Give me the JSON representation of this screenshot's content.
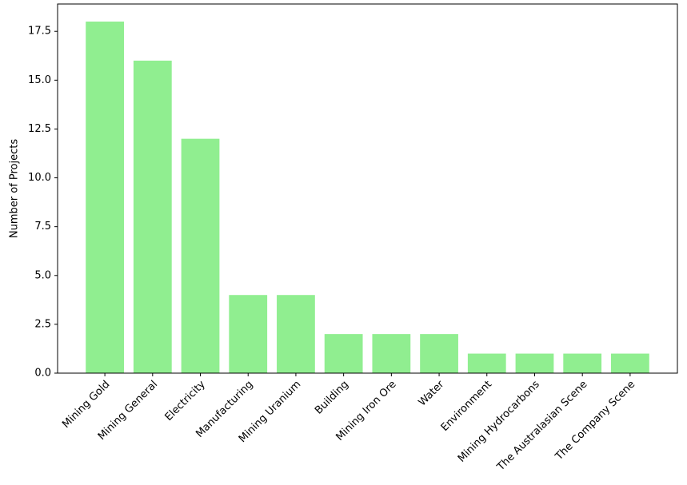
{
  "chart_data": {
    "type": "bar",
    "ylabel": "Number of Projects",
    "categories": [
      "Mining Gold",
      "Mining General",
      "Electricity",
      "Manufacturing",
      "Mining Uranium",
      "Building",
      "Mining Iron Ore",
      "Water",
      "Environment",
      "Mining Hydrocarbons",
      "The Australasian Scene",
      "The Company Scene"
    ],
    "values": [
      18,
      16,
      12,
      4,
      4,
      2,
      2,
      2,
      1,
      1,
      1,
      1
    ],
    "color": "#90ee90",
    "ylim": [
      0,
      18.9
    ],
    "yticks": [
      {
        "value": 0,
        "label": "0.0"
      },
      2.5,
      {
        "value": 5,
        "label": "5.0"
      },
      7.5,
      {
        "value": 10,
        "label": "10.0"
      },
      12.5,
      {
        "value": 15,
        "label": "15.0"
      },
      17.5
    ],
    "grid": false
  }
}
